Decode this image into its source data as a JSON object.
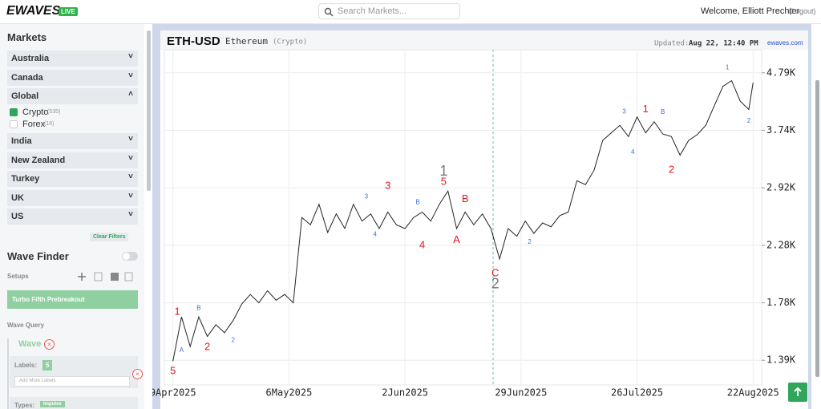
{
  "header": {
    "logo": "EWAVES",
    "badge": "LIVE",
    "search_placeholder": "Search Markets...",
    "welcome": "Welcome, Elliott Prechter",
    "logout": "(Logout)"
  },
  "sidebar": {
    "markets_title": "Markets",
    "groups": [
      "Australia",
      "Canada",
      "Global",
      "India",
      "New Zealand",
      "Turkey",
      "UK",
      "US"
    ],
    "global_items": [
      {
        "name": "Crypto",
        "count": "(535)"
      },
      {
        "name": "Forex",
        "count": "(16)"
      }
    ],
    "clear_filters": "Clear Filters",
    "wave_finder": "Wave Finder",
    "setups": "Setups",
    "setup_selected": "Turbo Fifth Prebreakout",
    "wave_query": "Wave Query",
    "wave": "Wave",
    "labels_label": "Labels:",
    "labels_value": "5",
    "add_labels": "Add More Labels",
    "types_label": "Types:",
    "types_value": "Impulse"
  },
  "chart_data": {
    "type": "line",
    "symbol": "ETH-USD",
    "name": "Ethereum",
    "asset_class": "(Crypto)",
    "updated_label": "Updated:",
    "updated_value": "Aug 22, 12:40 PM",
    "source": "ewaves.com",
    "color": "#222222",
    "log_scale": true,
    "grid": true,
    "x": [
      "2025-04-09",
      "2025-04-11",
      "2025-04-13",
      "2025-04-15",
      "2025-04-17",
      "2025-04-19",
      "2025-04-21",
      "2025-04-23",
      "2025-04-25",
      "2025-04-27",
      "2025-04-29",
      "2025-05-01",
      "2025-05-03",
      "2025-05-05",
      "2025-05-07",
      "2025-05-09",
      "2025-05-11",
      "2025-05-13",
      "2025-05-15",
      "2025-05-17",
      "2025-05-19",
      "2025-05-21",
      "2025-05-23",
      "2025-05-25",
      "2025-05-27",
      "2025-05-29",
      "2025-05-31",
      "2025-06-02",
      "2025-06-04",
      "2025-06-06",
      "2025-06-08",
      "2025-06-10",
      "2025-06-12",
      "2025-06-14",
      "2025-06-16",
      "2025-06-18",
      "2025-06-20",
      "2025-06-22",
      "2025-06-24",
      "2025-06-26",
      "2025-06-28",
      "2025-06-30",
      "2025-07-02",
      "2025-07-04",
      "2025-07-06",
      "2025-07-08",
      "2025-07-10",
      "2025-07-12",
      "2025-07-14",
      "2025-07-16",
      "2025-07-18",
      "2025-07-20",
      "2025-07-22",
      "2025-07-24",
      "2025-07-26",
      "2025-07-28",
      "2025-07-30",
      "2025-08-01",
      "2025-08-03",
      "2025-08-05",
      "2025-08-07",
      "2025-08-09",
      "2025-08-11",
      "2025-08-13",
      "2025-08-15",
      "2025-08-17",
      "2025-08-19",
      "2025-08-21",
      "2025-08-22"
    ],
    "values": [
      1385,
      1675,
      1475,
      1675,
      1540,
      1620,
      1565,
      1650,
      1770,
      1845,
      1780,
      1875,
      1800,
      1845,
      1780,
      2570,
      2490,
      2720,
      2410,
      2610,
      2450,
      2720,
      2530,
      2610,
      2450,
      2630,
      2490,
      2450,
      2570,
      2630,
      2530,
      2720,
      2880,
      2450,
      2630,
      2490,
      2610,
      2450,
      2150,
      2450,
      2370,
      2530,
      2400,
      2510,
      2470,
      2590,
      2630,
      3010,
      2960,
      3150,
      3580,
      3700,
      3820,
      3640,
      3960,
      3700,
      3880,
      3680,
      3640,
      3360,
      3580,
      3670,
      3820,
      4160,
      4520,
      4630,
      4240,
      4090,
      4590
    ],
    "xlim": [
      "2025-04-07",
      "2025-08-24"
    ],
    "xticks": [
      {
        "value": "2025-04-09",
        "label": "9Apr2025"
      },
      {
        "value": "2025-05-06",
        "label": "6May2025"
      },
      {
        "value": "2025-06-02",
        "label": "2Jun2025"
      },
      {
        "value": "2025-06-29",
        "label": "29Jun2025"
      },
      {
        "value": "2025-07-26",
        "label": "26Jul2025"
      },
      {
        "value": "2025-08-22",
        "label": "22Aug2025"
      }
    ],
    "ylim": [
      1250,
      5290
    ],
    "yticks": [
      {
        "value": 1390,
        "label": "1.39K"
      },
      {
        "value": 1780,
        "label": "1.78K"
      },
      {
        "value": 2280,
        "label": "2.28K"
      },
      {
        "value": 2920,
        "label": "2.92K"
      },
      {
        "value": 3740,
        "label": "3.74K"
      },
      {
        "value": 4790,
        "label": "4.79K"
      }
    ],
    "annotations": [
      {
        "text": "1",
        "x": "2025-04-10",
        "y": 1710,
        "color": "#e0191b",
        "size": "big"
      },
      {
        "text": "5",
        "x": "2025-04-09",
        "y": 1325,
        "color": "#e0191b",
        "size": "big"
      },
      {
        "text": "2",
        "x": "2025-04-17",
        "y": 1470,
        "color": "#e0191b",
        "size": "big"
      },
      {
        "text": "3",
        "x": "2025-05-29",
        "y": 2940,
        "color": "#e0191b",
        "size": "big"
      },
      {
        "text": "1",
        "x": "2025-06-11",
        "y": 3130,
        "color": "#777777",
        "size": "huge"
      },
      {
        "text": "5",
        "x": "2025-06-11",
        "y": 2990,
        "color": "#e0191b",
        "size": "big"
      },
      {
        "text": "4",
        "x": "2025-06-06",
        "y": 2280,
        "color": "#e0191b",
        "size": "big"
      },
      {
        "text": "B",
        "x": "2025-06-16",
        "y": 2780,
        "color": "#e0191b",
        "size": "big"
      },
      {
        "text": "A",
        "x": "2025-06-14",
        "y": 2330,
        "color": "#e0191b",
        "size": "big"
      },
      {
        "text": "C",
        "x": "2025-06-23",
        "y": 2020,
        "color": "#e0191b",
        "size": "big"
      },
      {
        "text": "2",
        "x": "2025-06-23",
        "y": 1925,
        "color": "#777777",
        "size": "huge"
      },
      {
        "text": "1",
        "x": "2025-07-28",
        "y": 4090,
        "color": "#e0191b",
        "size": "big"
      },
      {
        "text": "2",
        "x": "2025-08-03",
        "y": 3150,
        "color": "#e0191b",
        "size": "big"
      },
      {
        "text": "A",
        "x": "2025-04-11",
        "y": 1450,
        "color": "#3a6fd8",
        "size": "small"
      },
      {
        "text": "B",
        "x": "2025-04-15",
        "y": 1740,
        "color": "#3a6fd8",
        "size": "small"
      },
      {
        "text": "2",
        "x": "2025-04-23",
        "y": 1515,
        "color": "#3a6fd8",
        "size": "small"
      },
      {
        "text": "3",
        "x": "2025-05-24",
        "y": 2810,
        "color": "#3a6fd8",
        "size": "small"
      },
      {
        "text": "4",
        "x": "2025-05-26",
        "y": 2390,
        "color": "#3a6fd8",
        "size": "small"
      },
      {
        "text": "B",
        "x": "2025-06-05",
        "y": 2740,
        "color": "#3a6fd8",
        "size": "small"
      },
      {
        "text": "2",
        "x": "2025-07-01",
        "y": 2310,
        "color": "#3a6fd8",
        "size": "small"
      },
      {
        "text": "3",
        "x": "2025-07-23",
        "y": 4050,
        "color": "#3a6fd8",
        "size": "small"
      },
      {
        "text": "4",
        "x": "2025-07-25",
        "y": 3400,
        "color": "#3a6fd8",
        "size": "small"
      },
      {
        "text": "B",
        "x": "2025-08-01",
        "y": 4040,
        "color": "#3a6fd8",
        "size": "small"
      },
      {
        "text": "1",
        "x": "2025-08-16",
        "y": 4900,
        "color": "#3a6fd8",
        "size": "small"
      },
      {
        "text": "2",
        "x": "2025-08-21",
        "y": 3890,
        "color": "#3a6fd8",
        "size": "small"
      }
    ]
  }
}
